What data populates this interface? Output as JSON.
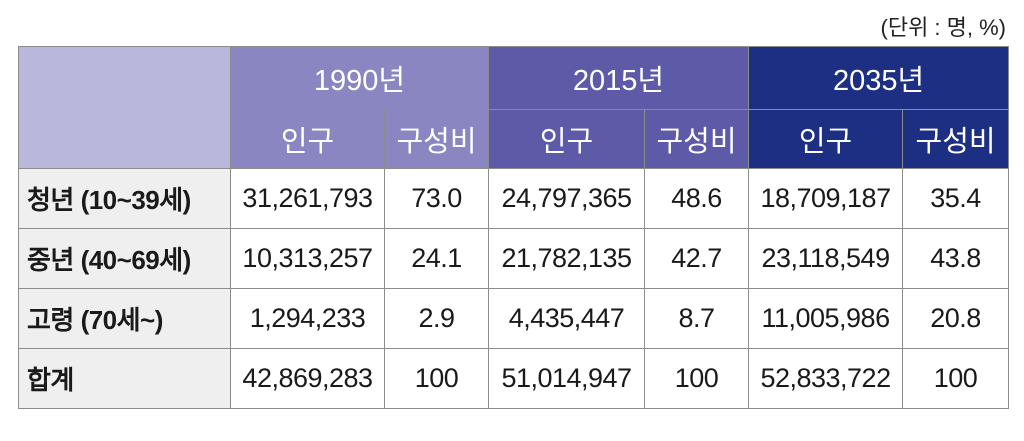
{
  "unit_note": "(단위 : 명, %)",
  "header": {
    "years": [
      "1990년",
      "2015년",
      "2035년"
    ],
    "sub": [
      "인구",
      "구성비"
    ]
  },
  "rows": [
    {
      "label": "청년 (10~39세)",
      "values": [
        "31,261,793",
        "73.0",
        "24,797,365",
        "48.6",
        "18,709,187",
        "35.4"
      ]
    },
    {
      "label": "중년 (40~69세)",
      "values": [
        "10,313,257",
        "24.1",
        "21,782,135",
        "42.7",
        "23,118,549",
        "43.8"
      ]
    },
    {
      "label": "고령 (70세~)",
      "values": [
        "1,294,233",
        "2.9",
        "4,435,447",
        "8.7",
        "11,005,986",
        "20.8"
      ]
    },
    {
      "label": "합계",
      "values": [
        "42,869,283",
        "100",
        "51,014,947",
        "100",
        "52,833,722",
        "100"
      ]
    }
  ],
  "colors": {
    "corner": "#b9b8dc",
    "y1990": "#8a86c2",
    "y2015": "#5d5aa8",
    "y2035": "#1c2f82",
    "row_label_bg": "#efefef"
  }
}
